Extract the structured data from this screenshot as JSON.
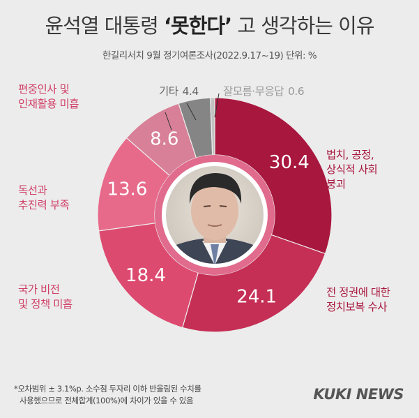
{
  "title": {
    "part1": "윤석열 대통령",
    "highlight": "‘못한다’",
    "part2": "고 생각하는 이유"
  },
  "subtitle": "한길리서치 9월 정기여론조사(2022.9.17~19) 단위: %",
  "colors": {
    "law": "#a8173e",
    "political": "#c52f55",
    "vision": "#dd4a70",
    "drive": "#e86a8b",
    "personnel": "#d78097",
    "other": "#858585",
    "dontknow": "#c2c2c2"
  },
  "chart_data": {
    "type": "pie",
    "variant": "donut",
    "series": [
      {
        "key": "law",
        "name": "법치, 공정, 상식적 사회 붕괴",
        "value": 30.4,
        "label_lines": [
          "법치, 공정,",
          "상식적 사회",
          "붕괴"
        ]
      },
      {
        "key": "political",
        "name": "전 정권에 대한 정치보복 수사",
        "value": 24.1,
        "label_lines": [
          "전 정권에 대한",
          "정치보복 수사"
        ]
      },
      {
        "key": "vision",
        "name": "국가 비전 및 정책 미흡",
        "value": 18.4,
        "label_lines": [
          "국가 비전",
          "및 정책 미흡"
        ]
      },
      {
        "key": "drive",
        "name": "독선과 추진력 부족",
        "value": 13.6,
        "label_lines": [
          "독선과",
          "추진력 부족"
        ]
      },
      {
        "key": "personnel",
        "name": "편중인사 및 인재활용 미흡",
        "value": 8.6,
        "label_lines": [
          "편중인사 및",
          "인재활용 미흡"
        ]
      },
      {
        "key": "other",
        "name": "기타",
        "value": 4.4,
        "label_lines": [
          "기타"
        ]
      },
      {
        "key": "dontknow",
        "name": "잘모름·무응답",
        "value": 0.6,
        "label_lines": [
          "잘모름·무응답"
        ]
      }
    ]
  },
  "labels": {
    "other_value": "4.4",
    "dontknow_value": "0.6"
  },
  "footnote": {
    "line1": "*오차범위 ± 3.1%p. 소수점 두자리 이하 반올림된 수치를",
    "line2": "사용했으므로 전체합계(100%)에 차이가 있을 수 있음"
  },
  "logo": "KUKI NEWS"
}
